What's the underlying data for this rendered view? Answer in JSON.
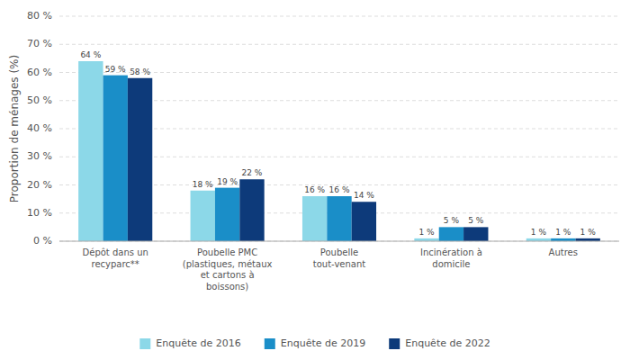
{
  "chart_data": {
    "type": "bar",
    "ylabel": "Proportion de ménages (%)",
    "categories": [
      "Dépôt dans un\nrecyparc**",
      "Poubelle PMC\n(plastiques, métaux\net cartons à\nboissons)",
      "Poubelle\ntout-venant",
      "Incinération à\ndomicile",
      "Autres"
    ],
    "series": [
      {
        "name": "Enquête de 2016",
        "color": "#8cd8e8",
        "values": [
          64,
          18,
          16,
          1,
          1
        ],
        "value_labels": [
          "64 %",
          "18 %",
          "16 %",
          "1 %",
          "1 %"
        ]
      },
      {
        "name": "Enquête de 2019",
        "color": "#1a8ec8",
        "values": [
          59,
          19,
          16,
          5,
          1
        ],
        "value_labels": [
          "59 %",
          "19 %",
          "16 %",
          "5 %",
          "1 %"
        ]
      },
      {
        "name": "Enquête de 2022",
        "color": "#0d3a7a",
        "values": [
          58,
          22,
          14,
          5,
          1
        ],
        "value_labels": [
          "58 %",
          "22 %",
          "14 %",
          "5 %",
          "1 %"
        ]
      }
    ],
    "ylim": [
      0,
      80
    ],
    "yticks": [
      {
        "value": 0,
        "label": "0 %"
      },
      {
        "value": 10,
        "label": "10 %"
      },
      {
        "value": 20,
        "label": "20 %"
      },
      {
        "value": 30,
        "label": "30 %"
      },
      {
        "value": 40,
        "label": "40 %"
      },
      {
        "value": 50,
        "label": "50 %"
      },
      {
        "value": 60,
        "label": "60 %"
      },
      {
        "value": 70,
        "label": "70 %"
      },
      {
        "value": 80,
        "label": "80 %"
      }
    ],
    "grid": true,
    "data_labels": true,
    "legend": "bottom"
  }
}
